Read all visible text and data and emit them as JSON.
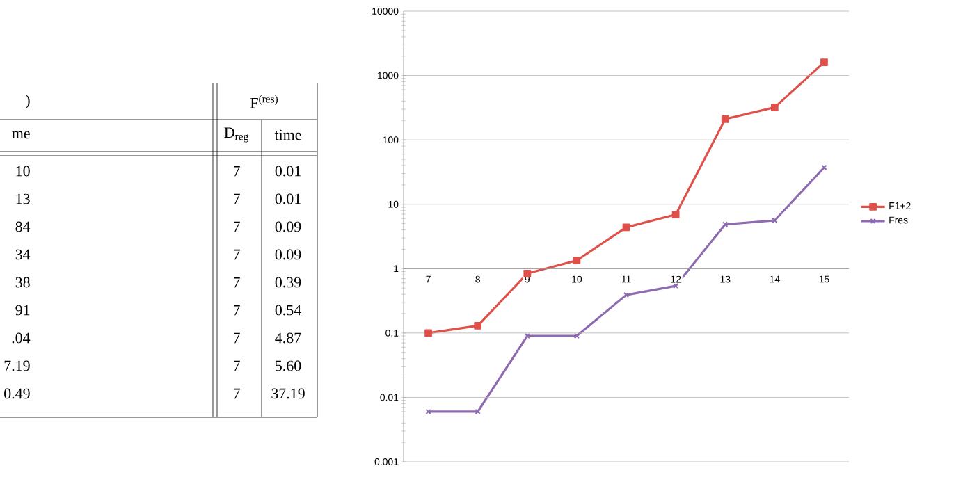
{
  "chart_data": {
    "type": "line",
    "categories": [
      "7",
      "8",
      "9",
      "10",
      "11",
      "12",
      "13",
      "14",
      "15"
    ],
    "series": [
      {
        "name": "F1+2",
        "color": "#e0504a",
        "marker": "square",
        "values": [
          0.1,
          0.13,
          0.84,
          1.34,
          4.38,
          6.91,
          210,
          320,
          1600
        ]
      },
      {
        "name": "Fres",
        "color": "#8e6bb0",
        "marker": "cross",
        "values": [
          0.006,
          0.006,
          0.09,
          0.09,
          0.39,
          0.54,
          4.87,
          5.6,
          37.19
        ]
      }
    ],
    "log": "y",
    "ylim": [
      0.001,
      10000
    ],
    "yticks": [
      0.001,
      0.01,
      0.1,
      1,
      10,
      100,
      1000,
      10000
    ],
    "grid": "y",
    "legend": "right",
    "annotations": [
      ")",
      "F$^{(res)}$",
      "me",
      "D$_{reg}$",
      "time",
      "10",
      "7",
      "0.01",
      "13",
      "7",
      "0.01",
      "84",
      "7",
      "0.09",
      "34",
      "7",
      "0.09",
      "38",
      "7",
      "0.39",
      "91",
      "7",
      "0.54",
      ".04",
      "7",
      "4.87",
      "7.19",
      "7",
      "5.60",
      "0.49",
      "7",
      "37.19"
    ]
  }
}
